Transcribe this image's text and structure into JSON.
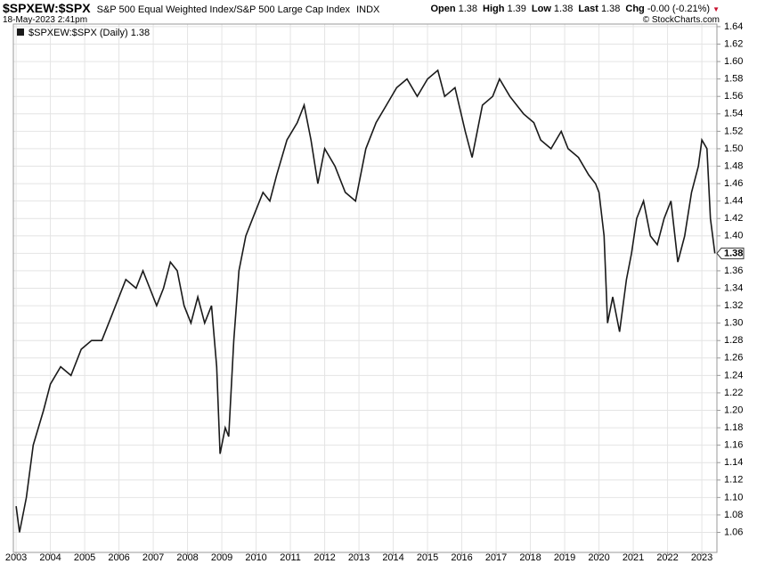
{
  "chart_data": {
    "type": "line",
    "title": "$SPXEW:$SPX",
    "subtitle": "S&P 500 Equal Weighted Index/S&P 500 Large Cap Index",
    "exchange": "INDX",
    "date": "18-May-2023 2:41pm",
    "credit": "© StockCharts.com",
    "legend": "$SPXEW:$SPX (Daily) 1.38",
    "quote": [
      {
        "label": "Open",
        "value": 1.38
      },
      {
        "label": "High",
        "value": 1.39
      },
      {
        "label": "Low",
        "value": 1.38
      },
      {
        "label": "Last",
        "value": 1.38
      },
      {
        "label": "Chg",
        "value": "-0.00 (-0.21%)"
      }
    ],
    "last_value": 1.38,
    "grid": true,
    "xlim": [
      2002.92,
      2023.44
    ],
    "xticks": [
      2003,
      2004,
      2005,
      2006,
      2007,
      2008,
      2009,
      2010,
      2011,
      2012,
      2013,
      2014,
      2015,
      2016,
      2017,
      2018,
      2019,
      2020,
      2021,
      2022,
      2023
    ],
    "ylim": [
      1.037,
      1.643
    ],
    "yticks": [
      1.06,
      1.08,
      {
        "value": 1.1,
        "label": "1.10"
      },
      1.12,
      1.14,
      1.16,
      1.18,
      {
        "value": 1.2,
        "label": "1.20"
      },
      1.22,
      1.24,
      1.26,
      1.28,
      {
        "value": 1.3,
        "label": "1.30"
      },
      1.32,
      1.34,
      1.36,
      1.38,
      {
        "value": 1.4,
        "label": "1.40"
      },
      1.42,
      1.44,
      1.46,
      1.48,
      {
        "value": 1.5,
        "label": "1.50"
      },
      1.52,
      1.54,
      1.56,
      1.58,
      {
        "value": 1.6,
        "label": "1.60"
      },
      1.62,
      1.64
    ],
    "series": [
      {
        "name": "$SPXEW:$SPX",
        "color": "#1a1a1a",
        "x": [
          2003.0,
          2003.1,
          2003.3,
          2003.5,
          2003.8,
          2004.0,
          2004.3,
          2004.6,
          2004.9,
          2005.2,
          2005.5,
          2005.8,
          2006.0,
          2006.2,
          2006.5,
          2006.7,
          2006.9,
          2007.1,
          2007.3,
          2007.5,
          2007.7,
          2007.9,
          2008.1,
          2008.3,
          2008.5,
          2008.7,
          2008.85,
          2008.95,
          2009.1,
          2009.2,
          2009.35,
          2009.5,
          2009.7,
          2009.9,
          2010.2,
          2010.4,
          2010.6,
          2010.9,
          2011.2,
          2011.4,
          2011.6,
          2011.8,
          2012.0,
          2012.3,
          2012.6,
          2012.9,
          2013.2,
          2013.5,
          2013.8,
          2014.1,
          2014.4,
          2014.7,
          2015.0,
          2015.3,
          2015.5,
          2015.8,
          2016.1,
          2016.3,
          2016.6,
          2016.9,
          2017.1,
          2017.4,
          2017.8,
          2018.1,
          2018.3,
          2018.6,
          2018.9,
          2019.1,
          2019.4,
          2019.7,
          2019.9,
          2020.0,
          2020.15,
          2020.25,
          2020.4,
          2020.6,
          2020.8,
          2020.95,
          2021.1,
          2021.3,
          2021.5,
          2021.7,
          2021.9,
          2022.1,
          2022.3,
          2022.5,
          2022.7,
          2022.9,
          2023.0,
          2023.15,
          2023.25,
          2023.38
        ],
        "values": [
          1.09,
          1.06,
          1.1,
          1.16,
          1.2,
          1.23,
          1.25,
          1.24,
          1.27,
          1.28,
          1.28,
          1.31,
          1.33,
          1.35,
          1.34,
          1.36,
          1.34,
          1.32,
          1.34,
          1.37,
          1.36,
          1.32,
          1.3,
          1.33,
          1.3,
          1.32,
          1.25,
          1.15,
          1.18,
          1.17,
          1.28,
          1.36,
          1.4,
          1.42,
          1.45,
          1.44,
          1.47,
          1.51,
          1.53,
          1.55,
          1.51,
          1.46,
          1.5,
          1.48,
          1.45,
          1.44,
          1.5,
          1.53,
          1.55,
          1.57,
          1.58,
          1.56,
          1.58,
          1.59,
          1.56,
          1.57,
          1.52,
          1.49,
          1.55,
          1.56,
          1.58,
          1.56,
          1.54,
          1.53,
          1.51,
          1.5,
          1.52,
          1.5,
          1.49,
          1.47,
          1.46,
          1.45,
          1.4,
          1.3,
          1.33,
          1.29,
          1.35,
          1.38,
          1.42,
          1.44,
          1.4,
          1.39,
          1.42,
          1.44,
          1.37,
          1.4,
          1.45,
          1.48,
          1.51,
          1.5,
          1.42,
          1.38
        ]
      }
    ]
  }
}
